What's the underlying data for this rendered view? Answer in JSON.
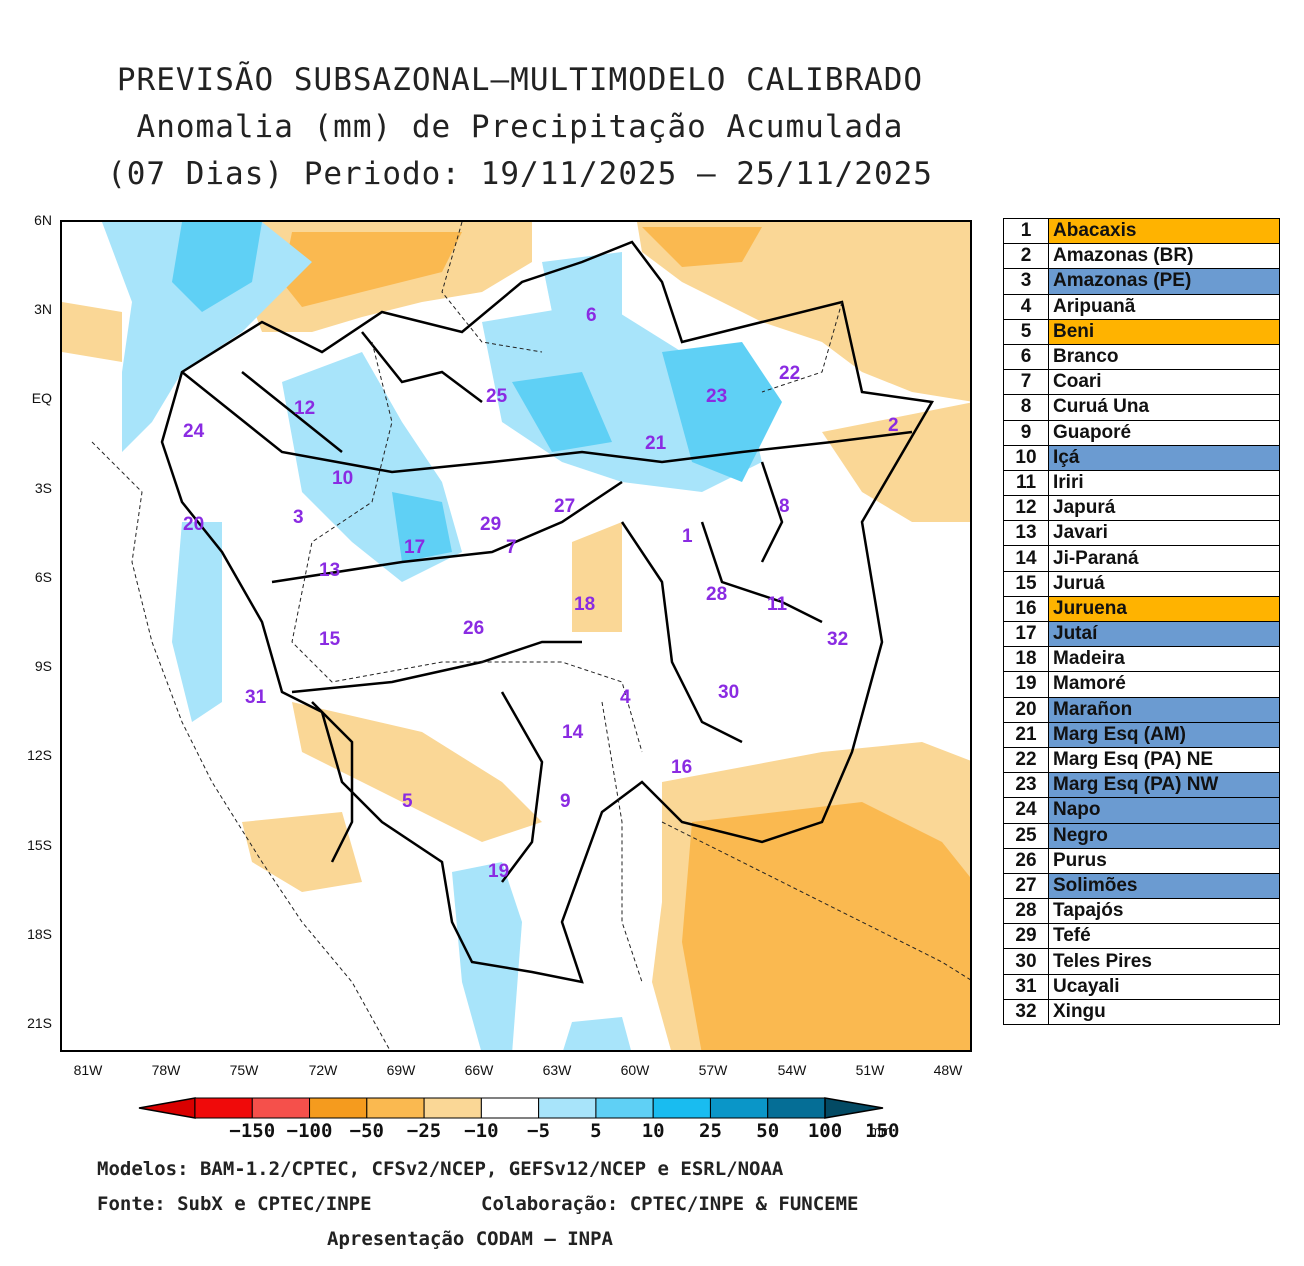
{
  "title": {
    "line1": "PREVISÃO SUBSAZONAL—MULTIMODELO CALIBRADO",
    "line2": "Anomalia (mm) de Precipitação Acumulada",
    "line3": "(07 Dias) Periodo: 19/11/2025 — 25/11/2025"
  },
  "axes": {
    "y_ticks": [
      "6N",
      "3N",
      "EQ",
      "3S",
      "6S",
      "9S",
      "12S",
      "15S",
      "18S",
      "21S"
    ],
    "x_ticks": [
      "81W",
      "78W",
      "75W",
      "72W",
      "69W",
      "66W",
      "63W",
      "60W",
      "57W",
      "54W",
      "51W",
      "48W"
    ]
  },
  "basin_labels": [
    "1",
    "2",
    "3",
    "4",
    "5",
    "6",
    "7",
    "8",
    "9",
    "10",
    "11",
    "12",
    "13",
    "14",
    "15",
    "16",
    "17",
    "18",
    "19",
    "20",
    "21",
    "22",
    "23",
    "24",
    "25",
    "26",
    "27",
    "28",
    "29",
    "30",
    "31",
    "32"
  ],
  "colors": {
    "label": "#8a2be2",
    "highlight_orange": "#ffb300",
    "highlight_blue": "#6b9bd1"
  },
  "legend": [
    {
      "num": "1",
      "name": "Abacaxis",
      "hl": "orange"
    },
    {
      "num": "2",
      "name": "Amazonas (BR)",
      "hl": ""
    },
    {
      "num": "3",
      "name": "Amazonas (PE)",
      "hl": "blue"
    },
    {
      "num": "4",
      "name": "Aripuanã",
      "hl": ""
    },
    {
      "num": "5",
      "name": "Beni",
      "hl": "orange"
    },
    {
      "num": "6",
      "name": "Branco",
      "hl": ""
    },
    {
      "num": "7",
      "name": "Coari",
      "hl": ""
    },
    {
      "num": "8",
      "name": "Curuá Una",
      "hl": ""
    },
    {
      "num": "9",
      "name": "Guaporé",
      "hl": ""
    },
    {
      "num": "10",
      "name": "Içá",
      "hl": "blue"
    },
    {
      "num": "11",
      "name": "Iriri",
      "hl": ""
    },
    {
      "num": "12",
      "name": "Japurá",
      "hl": ""
    },
    {
      "num": "13",
      "name": "Javari",
      "hl": ""
    },
    {
      "num": "14",
      "name": "Ji-Paraná",
      "hl": ""
    },
    {
      "num": "15",
      "name": "Juruá",
      "hl": ""
    },
    {
      "num": "16",
      "name": "Juruena",
      "hl": "orange"
    },
    {
      "num": "17",
      "name": "Jutaí",
      "hl": "blue"
    },
    {
      "num": "18",
      "name": "Madeira",
      "hl": ""
    },
    {
      "num": "19",
      "name": "Mamoré",
      "hl": ""
    },
    {
      "num": "20",
      "name": "Marañon",
      "hl": "blue"
    },
    {
      "num": "21",
      "name": "Marg Esq (AM)",
      "hl": "blue"
    },
    {
      "num": "22",
      "name": "Marg Esq (PA) NE",
      "hl": ""
    },
    {
      "num": "23",
      "name": "Marg Esq (PA) NW",
      "hl": "blue"
    },
    {
      "num": "24",
      "name": "Napo",
      "hl": "blue"
    },
    {
      "num": "25",
      "name": "Negro",
      "hl": "blue"
    },
    {
      "num": "26",
      "name": "Purus",
      "hl": ""
    },
    {
      "num": "27",
      "name": "Solimões",
      "hl": "blue"
    },
    {
      "num": "28",
      "name": "Tapajós",
      "hl": ""
    },
    {
      "num": "29",
      "name": "Tefé",
      "hl": ""
    },
    {
      "num": "30",
      "name": "Teles Pires",
      "hl": ""
    },
    {
      "num": "31",
      "name": "Ucayali",
      "hl": ""
    },
    {
      "num": "32",
      "name": "Xingu",
      "hl": ""
    }
  ],
  "colorbar": {
    "labels": [
      "-150",
      "-100",
      "-50",
      "-25",
      "-10",
      "-5",
      "5",
      "10",
      "25",
      "50",
      "100",
      "150"
    ],
    "unit": "mm",
    "colors": [
      "#d90000",
      "#f00a0a",
      "#f5504b",
      "#f59b1e",
      "#fab950",
      "#fad796",
      "#ffffff",
      "#a8e4fa",
      "#5fd0f5",
      "#19bcf0",
      "#0a96c8",
      "#056e96",
      "#034a64"
    ]
  },
  "footer": {
    "line1": "Modelos: BAM-1.2/CPTEC, CFSv2/NCEP, GEFSv12/NCEP e ESRL/NOAA",
    "line2a": "Fonte: SubX e CPTEC/INPE",
    "line2b": "Colaboração: CPTEC/INPE & FUNCEME",
    "line3": "Apresentação CODAM — INPA"
  }
}
